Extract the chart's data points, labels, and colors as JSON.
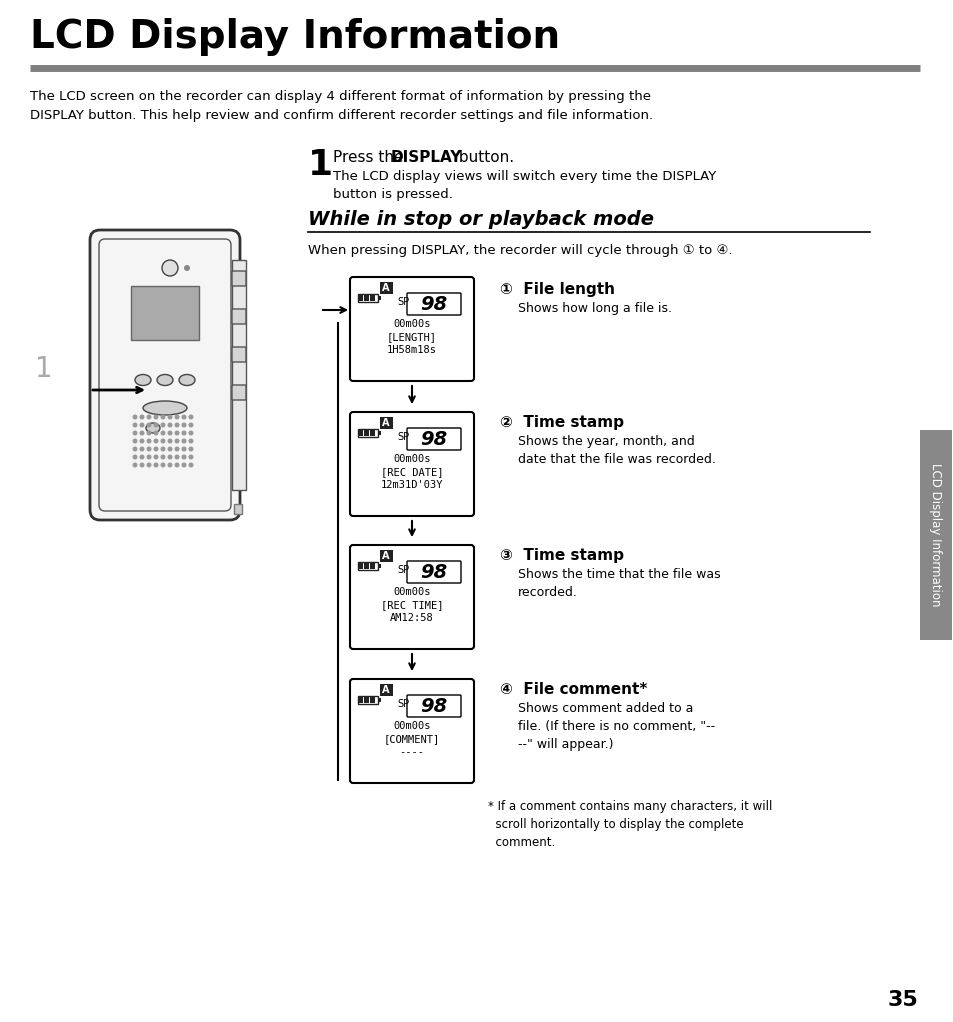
{
  "title": "LCD Display Information",
  "title_fontsize": 28,
  "title_color": "#000000",
  "rule_color": "#808080",
  "bg_color": "#ffffff",
  "intro_text": "The LCD screen on the recorder can display 4 different format of information by pressing the\nDISPLAY button. This help review and confirm different recorder settings and file information.",
  "step1_pre": "Press the ",
  "step1_bold": "DISPLAY",
  "step1_post": " button.",
  "step1_sub": "The LCD display views will switch every time the DISPLAY\nbutton is pressed.",
  "section_title": "While in stop or playback mode",
  "section_subtitle": "When pressing DISPLAY, the recorder will cycle through ① to ④.",
  "displays": [
    {
      "lines": [
        "00m00s",
        "[LENGTH]",
        "1H58m18s"
      ],
      "sp_label": "SP",
      "file_num": "98"
    },
    {
      "lines": [
        "00m00s",
        "[REC DATE]",
        "12m31D'03Y"
      ],
      "sp_label": "SP",
      "file_num": "98"
    },
    {
      "lines": [
        "00m00s",
        "[REC TIME]",
        "AM12:58"
      ],
      "sp_label": "SP",
      "file_num": "98"
    },
    {
      "lines": [
        "00m00s",
        "[COMMENT]",
        "----"
      ],
      "sp_label": "SP",
      "file_num": "98"
    }
  ],
  "item_labels": [
    "①  File length",
    "②  Time stamp",
    "③  Time stamp",
    "④  File comment*"
  ],
  "item_descs": [
    "Shows how long a file is.",
    "Shows the year, month, and\ndate that the file was recorded.",
    "Shows the time that the file was\nrecorded.",
    "Shows comment added to a\nfile. (If there is no comment, \"--\n--\" will appear.)"
  ],
  "footnote": "* If a comment contains many characters, it will\n  scroll horizontally to display the complete\n  comment.",
  "page_number": "35",
  "sidebar_text": "LCD Display Information",
  "sidebar_color": "#888888"
}
